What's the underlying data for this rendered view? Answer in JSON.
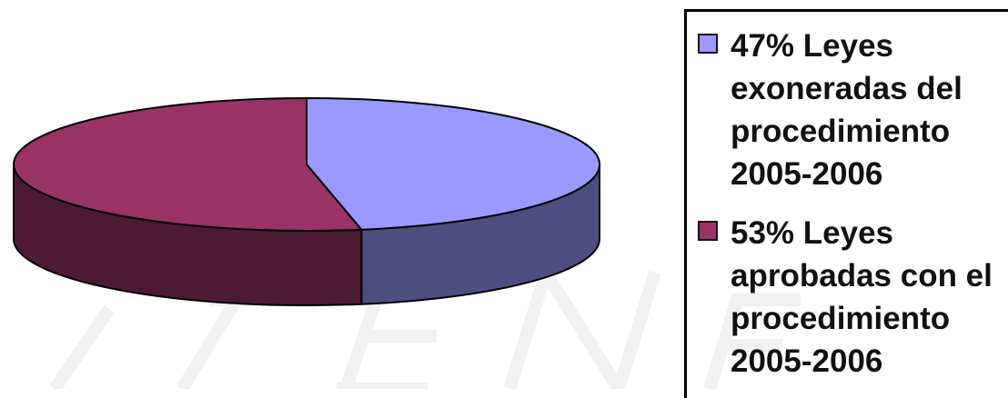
{
  "chart_data": {
    "type": "pie",
    "style": "3d",
    "slices": [
      {
        "label": "47% Leyes exoneradas del procedimiento 2005-2006",
        "value": 47,
        "color": "#9999ff",
        "side_color": "#4d4d80"
      },
      {
        "label": "53% Leyes aprobadas con el procedimiento 2005-2006",
        "value": 53,
        "color": "#993366",
        "side_color": "#4d1a33"
      }
    ],
    "legend_position": "right"
  },
  "legend": {
    "items": [
      {
        "text": "47% Leyes exoneradas del procedimiento 2005-2006",
        "color": "#9999ff"
      },
      {
        "text": "53% Leyes aprobadas con el procedimiento 2005-2006",
        "color": "#993366"
      }
    ]
  }
}
